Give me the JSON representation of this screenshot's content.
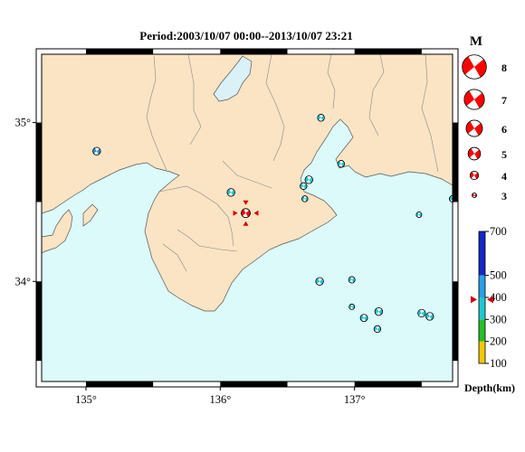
{
  "title": "Period:2003/10/07 00:00--2013/10/07 23:21",
  "map": {
    "lon_range": [
      134.67,
      137.73
    ],
    "lat_range": [
      33.37,
      35.43
    ],
    "lon_ticks": [
      {
        "value": 135,
        "label": "135°"
      },
      {
        "value": 136,
        "label": "136°"
      },
      {
        "value": 137,
        "label": "137°"
      }
    ],
    "lat_ticks": [
      {
        "value": 35,
        "label": "35°"
      },
      {
        "value": 34,
        "label": "34°"
      }
    ],
    "colors": {
      "land": "#fae4c4",
      "sea": "#dcfafa",
      "lake": "#d9f1f7",
      "border": "#888888"
    }
  },
  "events": [
    {
      "lon": 135.08,
      "lat": 34.82,
      "mag": 3.6,
      "depth": 345,
      "color": "#2894d8"
    },
    {
      "lon": 136.08,
      "lat": 34.56,
      "mag": 3.6,
      "depth": 345,
      "color": "#1ec8d2"
    },
    {
      "lon": 136.19,
      "lat": 34.43,
      "mag": 3.9,
      "depth": 390,
      "color": "#ff0000",
      "highlight": true
    },
    {
      "lon": 136.75,
      "lat": 35.03,
      "mag": 3.4,
      "depth": 345,
      "color": "#1ec8d2"
    },
    {
      "lon": 136.9,
      "lat": 34.74,
      "mag": 3.4,
      "depth": 345,
      "color": "#1ec8d2"
    },
    {
      "lon": 136.66,
      "lat": 34.64,
      "mag": 3.6,
      "depth": 345,
      "color": "#1ec8d2"
    },
    {
      "lon": 136.62,
      "lat": 34.6,
      "mag": 3.4,
      "depth": 345,
      "color": "#1ec8d2"
    },
    {
      "lon": 136.63,
      "lat": 34.52,
      "mag": 3.2,
      "depth": 345,
      "color": "#1ec8d2"
    },
    {
      "lon": 137.48,
      "lat": 34.42,
      "mag": 3.1,
      "depth": 345,
      "color": "#1ec8d2"
    },
    {
      "lon": 137.73,
      "lat": 34.52,
      "mag": 3.3,
      "depth": 345,
      "color": "#1ec8d2"
    },
    {
      "lon": 136.74,
      "lat": 34.0,
      "mag": 3.6,
      "depth": 345,
      "color": "#1ec8d2"
    },
    {
      "lon": 136.98,
      "lat": 34.01,
      "mag": 3.3,
      "depth": 345,
      "color": "#1ec8d2"
    },
    {
      "lon": 136.98,
      "lat": 33.84,
      "mag": 3.1,
      "depth": 345,
      "color": "#1ec8d2"
    },
    {
      "lon": 137.07,
      "lat": 33.77,
      "mag": 3.5,
      "depth": 345,
      "color": "#1ec8d2"
    },
    {
      "lon": 137.18,
      "lat": 33.81,
      "mag": 3.6,
      "depth": 345,
      "color": "#1ec8d2"
    },
    {
      "lon": 137.17,
      "lat": 33.7,
      "mag": 3.4,
      "depth": 345,
      "color": "#1ec8d2"
    },
    {
      "lon": 137.5,
      "lat": 33.8,
      "mag": 3.6,
      "depth": 345,
      "color": "#1ec8d2"
    },
    {
      "lon": 137.56,
      "lat": 33.78,
      "mag": 3.6,
      "depth": 345,
      "color": "#1ec8d2"
    }
  ],
  "mag_legend": {
    "title": "M",
    "items": [
      {
        "m": 8,
        "label": "8"
      },
      {
        "m": 7,
        "label": "7"
      },
      {
        "m": 6,
        "label": "6"
      },
      {
        "m": 5,
        "label": "5"
      },
      {
        "m": 4,
        "label": "4"
      },
      {
        "m": 3,
        "label": "3"
      }
    ]
  },
  "depth_scale": {
    "label": "Depth(km)",
    "min": 100,
    "max": 700,
    "ticks": [
      {
        "value": 700,
        "label": "700"
      },
      {
        "value": 500,
        "label": "500"
      },
      {
        "value": 400,
        "label": "400"
      },
      {
        "value": 300,
        "label": "300"
      },
      {
        "value": 200,
        "label": "200"
      },
      {
        "value": 100,
        "label": "100"
      }
    ],
    "bands": [
      {
        "from": 100,
        "to": 200,
        "color": "#f2c800"
      },
      {
        "from": 200,
        "to": 300,
        "color": "#28be28"
      },
      {
        "from": 300,
        "to": 400,
        "color": "#1ec8d2"
      },
      {
        "from": 400,
        "to": 500,
        "color": "#28a0e6"
      },
      {
        "from": 500,
        "to": 700,
        "color": "#1428c8"
      }
    ],
    "marker_value": 390
  }
}
